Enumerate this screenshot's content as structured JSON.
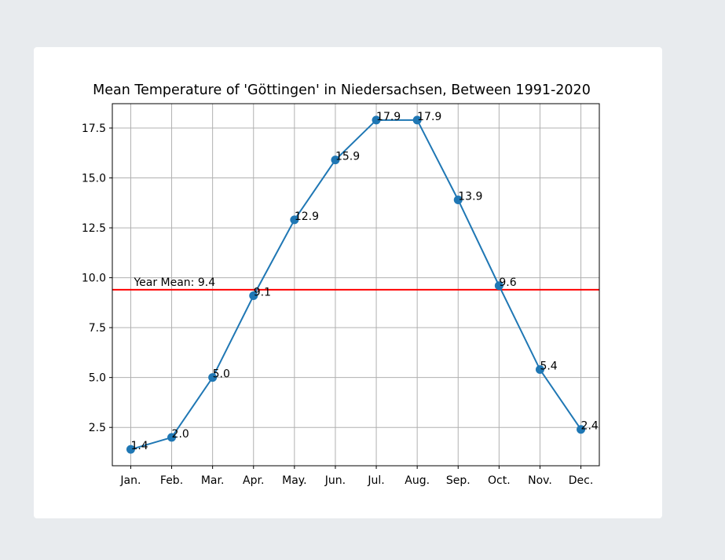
{
  "chart_data": {
    "type": "line",
    "title": "Mean Temperature of 'Göttingen' in Niedersachsen, Between 1991-2020",
    "xlabel": "",
    "ylabel": "",
    "categories": [
      "Jan.",
      "Feb.",
      "Mar.",
      "Apr.",
      "May.",
      "Jun.",
      "Jul.",
      "Aug.",
      "Sep.",
      "Oct.",
      "Nov.",
      "Dec."
    ],
    "series": [
      {
        "values": [
          1.4,
          2.0,
          5.0,
          9.1,
          12.9,
          15.9,
          17.9,
          17.9,
          13.9,
          9.6,
          5.4,
          2.4
        ],
        "labels": [
          "1.4",
          "2.0",
          "5.0",
          "9.1",
          "12.9",
          "15.9",
          "17.9",
          "17.9",
          "13.9",
          "9.6",
          "5.4",
          "2.4"
        ],
        "color": "#1f77b4"
      }
    ],
    "reference_line": {
      "value": 9.4,
      "label": "Year Mean: 9.4",
      "color": "#ff0000"
    },
    "ylim": [
      0.58,
      18.72
    ],
    "yticks": [
      2.5,
      5.0,
      7.5,
      10.0,
      12.5,
      15.0,
      17.5
    ],
    "ytick_labels": [
      "2.5",
      "5.0",
      "7.5",
      "10.0",
      "12.5",
      "15.0",
      "17.5"
    ],
    "grid": true
  }
}
